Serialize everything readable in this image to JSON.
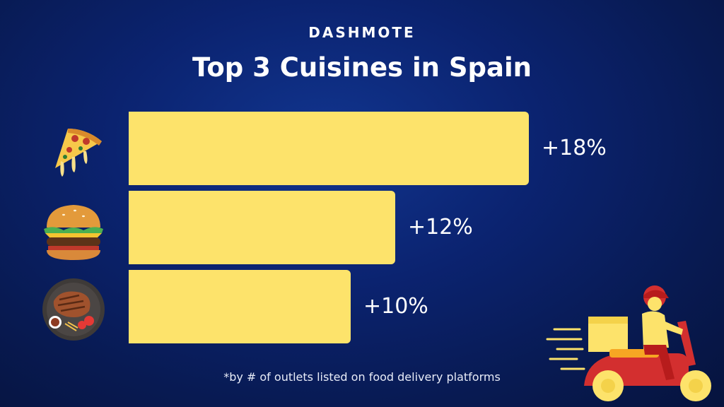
{
  "header": {
    "brand": "DASHMOTE",
    "title": "Top 3 Cuisines in Spain"
  },
  "footer": {
    "note": "*by # of outlets listed on food delivery platforms"
  },
  "colors": {
    "bar": "#fde36b",
    "background": "#0b2370",
    "text": "#ffffff"
  },
  "chart_data": {
    "type": "bar",
    "orientation": "horizontal",
    "title": "Top 3 Cuisines in Spain",
    "categories": [
      "pizza-icon",
      "burger-icon",
      "steak-icon"
    ],
    "values": [
      18,
      12,
      10
    ],
    "value_labels": [
      "+18%",
      "+12%",
      "+10%"
    ],
    "unit": "%",
    "xlabel": "",
    "ylabel": "",
    "xlim": [
      0,
      18
    ],
    "grid": false,
    "legend": "none"
  }
}
